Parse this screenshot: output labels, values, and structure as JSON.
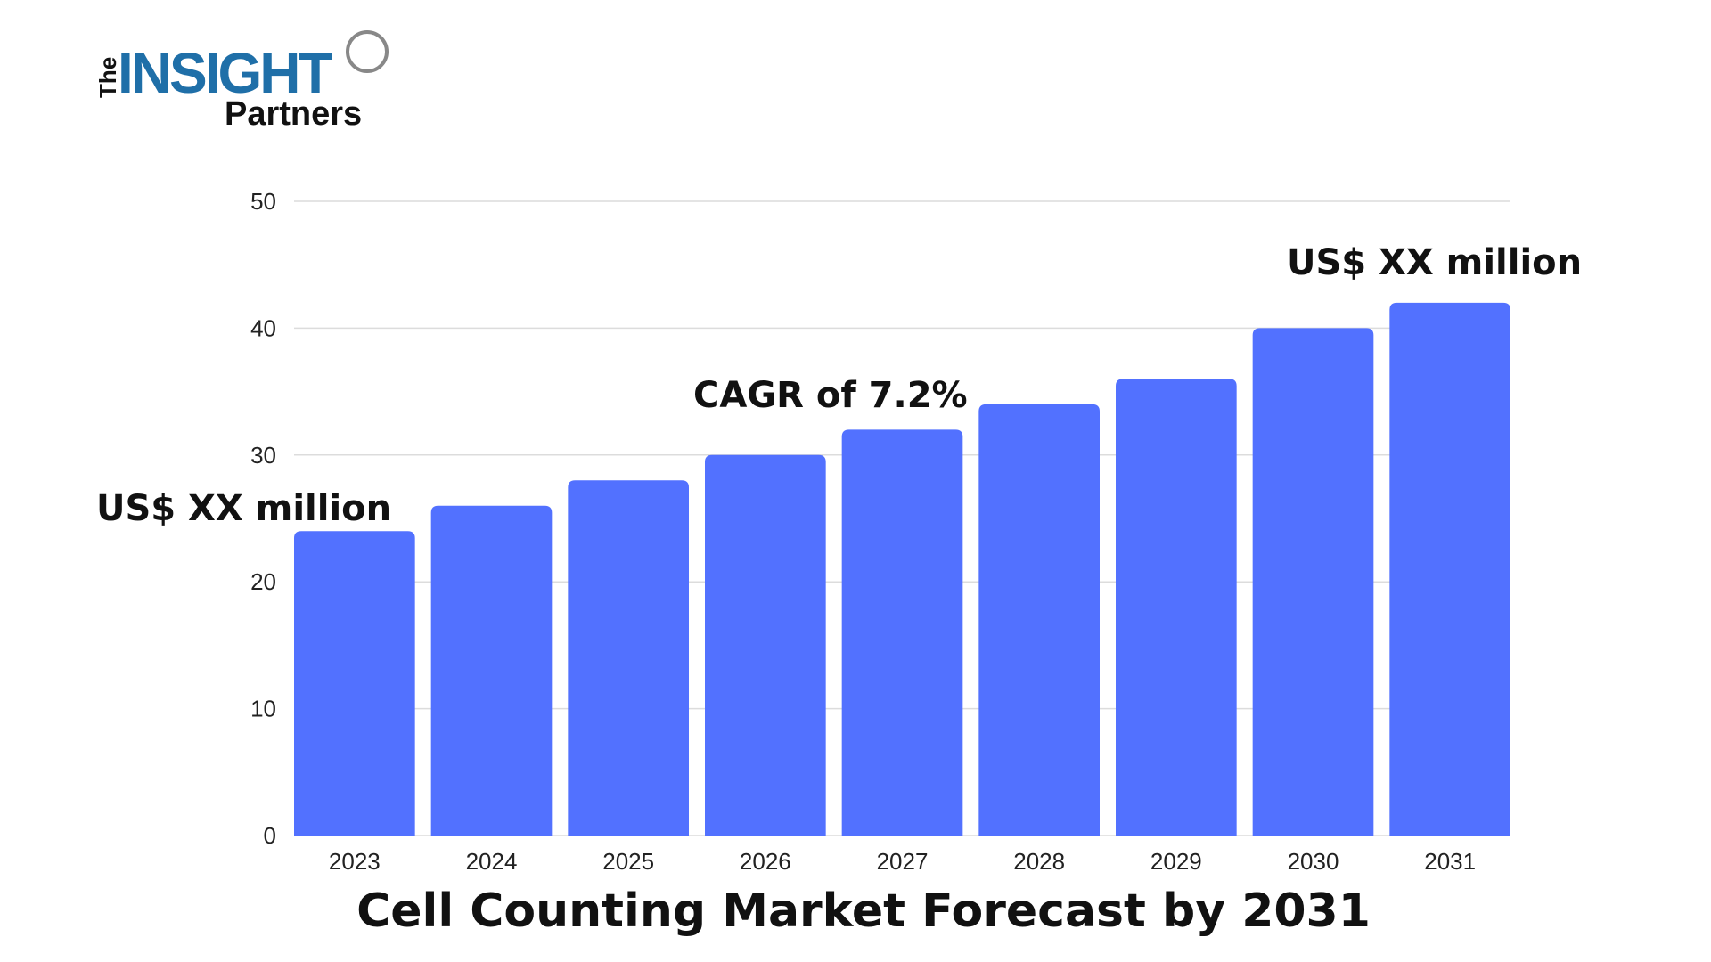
{
  "logo": {
    "the": "The",
    "insight": "INSIGHT",
    "partners": "Partners",
    "color": "#1f6fa8"
  },
  "chart_data": {
    "type": "bar",
    "title": "Cell Counting Market Forecast by 2031",
    "xlabel": "",
    "ylabel": "",
    "categories": [
      "2023",
      "2024",
      "2025",
      "2026",
      "2027",
      "2028",
      "2029",
      "2030",
      "2031"
    ],
    "values": [
      24,
      26,
      28,
      30,
      32,
      34,
      36,
      40,
      42
    ],
    "ylim": [
      0,
      50
    ],
    "yticks": [
      0,
      10,
      20,
      30,
      40,
      50
    ],
    "grid": true,
    "bar_color": "#5271ff",
    "annotations": {
      "start": "US$ XX million",
      "cagr": "CAGR of 7.2%",
      "end": "US$ XX million"
    }
  }
}
